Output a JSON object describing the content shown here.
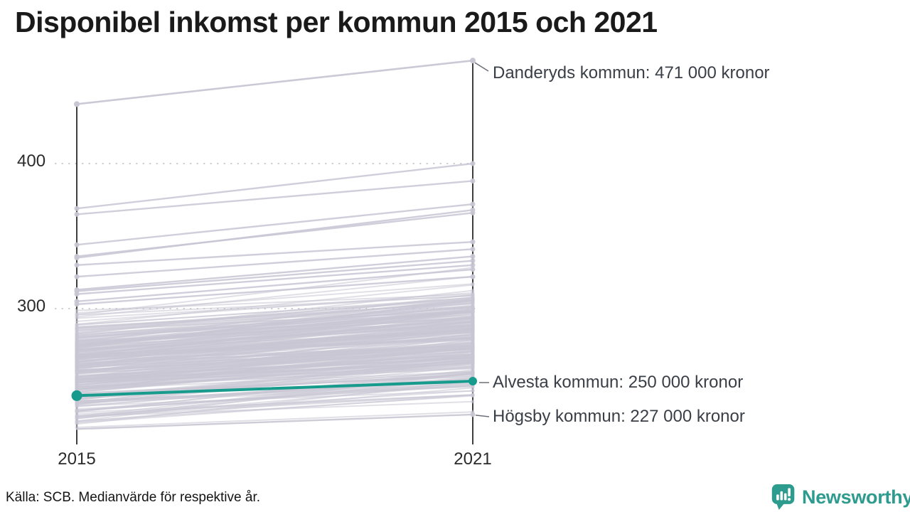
{
  "title": "Disponibel inkomst per kommun 2015 och 2021",
  "source_note": "Källa: SCB. Medianvärde för respektive år.",
  "branding": {
    "name": "Newsworthy",
    "color": "#2d9b8d",
    "icon": "speech-bubble-bar-chart-icon"
  },
  "chart_data": {
    "type": "line",
    "variant": "slopegraph",
    "title": "Disponibel inkomst per kommun 2015 och 2021",
    "x_labels": [
      "2015",
      "2021"
    ],
    "y_ticks": [
      300,
      400
    ],
    "y_unit": "thousand kronor",
    "ylim": [
      210,
      480
    ],
    "grid": "dotted horizontal lines at y ticks",
    "legend": "none",
    "annotated_series": [
      {
        "name": "Danderyds kommun",
        "values": [
          441,
          471
        ],
        "label": "Danderyds kommun: 471 000 kronor",
        "highlighted": false
      },
      {
        "name": "Alvesta kommun",
        "values": [
          240,
          250
        ],
        "label": "Alvesta kommun: 250 000 kronor",
        "highlighted": true
      },
      {
        "name": "Högsby kommun",
        "values": [
          217,
          227
        ],
        "label": "Högsby kommun: 227 000 kronor",
        "highlighted": false
      }
    ],
    "background_series_estimated": [
      [
        369,
        400
      ],
      [
        365,
        388
      ],
      [
        344,
        372
      ],
      [
        336,
        366
      ],
      [
        335,
        368
      ],
      [
        330,
        346
      ],
      [
        322,
        341
      ],
      [
        313,
        336
      ],
      [
        312,
        333
      ],
      [
        310,
        330
      ],
      [
        305,
        327
      ],
      [
        303,
        322
      ]
    ],
    "background_band_estimated": {
      "count": 255,
      "left_value_range": [
        216,
        303
      ],
      "gain_range": [
        10,
        33
      ],
      "seed": 11
    },
    "colors": {
      "highlight": "#169b8c",
      "background_line": "#c8c6d3",
      "axis": "#1c1c1c",
      "grid": "#c9c9c9",
      "annotation_text": "#3a3f47",
      "connector": "#6b6f76"
    }
  }
}
